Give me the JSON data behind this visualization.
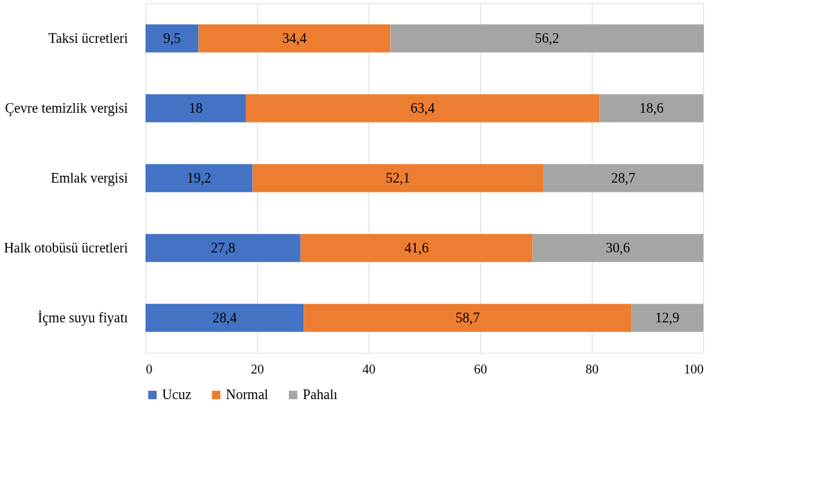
{
  "chart_data": {
    "type": "bar",
    "orientation": "horizontal",
    "stacked": true,
    "categories": [
      "Taksi ücretleri",
      "Çevre temizlik vergisi",
      "Emlak vergisi",
      "Halk otobüsü ücretleri",
      "İçme suyu fiyatı"
    ],
    "series": [
      {
        "name": "Ucuz",
        "color": "#4472c4",
        "values": [
          9.5,
          18,
          19.2,
          27.8,
          28.4
        ],
        "value_labels": [
          "9,5",
          "18",
          "19,2",
          "27,8",
          "28,4"
        ]
      },
      {
        "name": "Normal",
        "color": "#ed7d31",
        "values": [
          34.4,
          63.4,
          52.1,
          41.6,
          58.7
        ],
        "value_labels": [
          "34,4",
          "63,4",
          "52,1",
          "41,6",
          "58,7"
        ]
      },
      {
        "name": "Pahalı",
        "color": "#a5a5a5",
        "values": [
          56.2,
          18.6,
          28.7,
          30.6,
          12.9
        ],
        "value_labels": [
          "56,2",
          "18,6",
          "28,7",
          "30,6",
          "12,9"
        ]
      }
    ],
    "xlim": [
      0,
      100
    ],
    "xticks": [
      0,
      20,
      40,
      60,
      80,
      100
    ],
    "grid": "x",
    "legend": "bottom"
  }
}
